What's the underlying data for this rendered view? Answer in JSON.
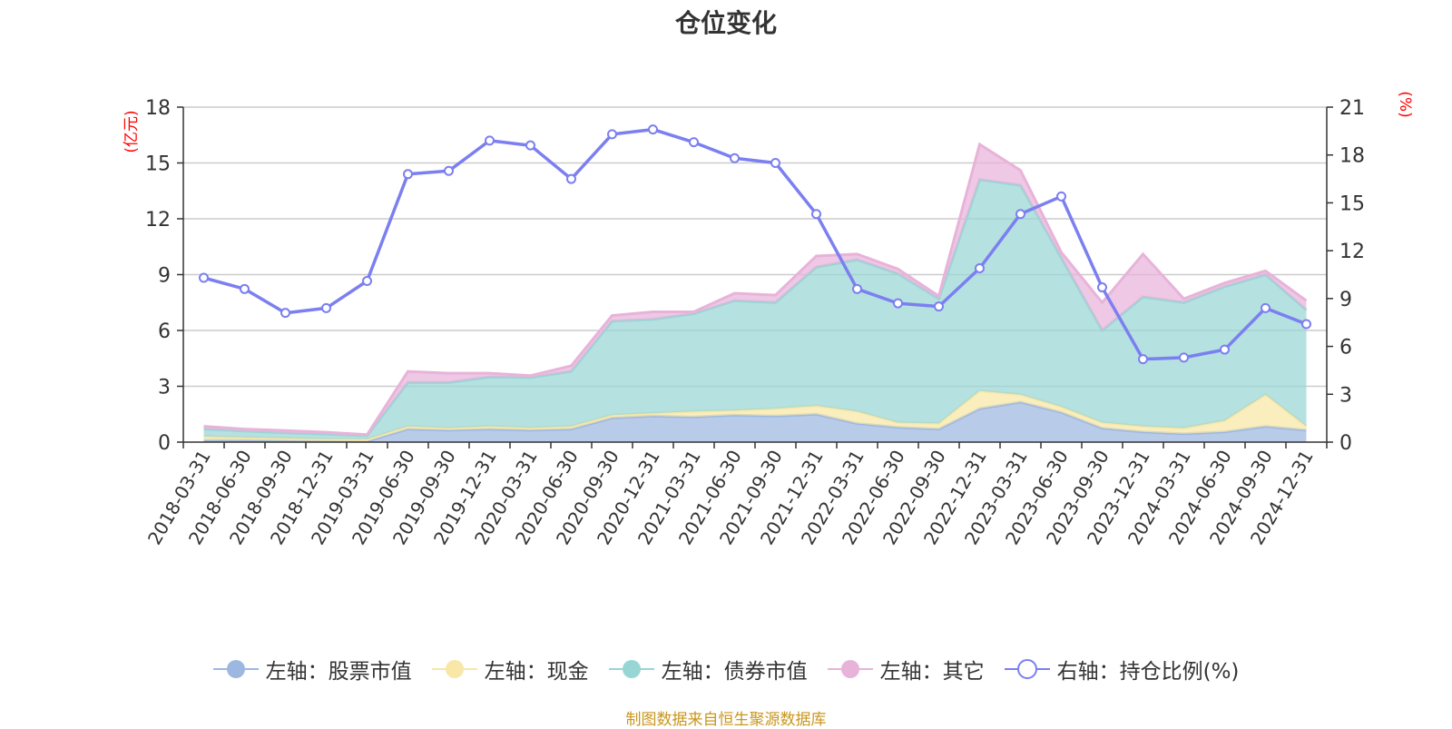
{
  "chart_data": {
    "type": "area",
    "title": "仓位变化",
    "left_axis_unit": "(亿元)",
    "right_axis_unit": "(%)",
    "left_ylim": [
      0,
      18
    ],
    "left_ticks": [
      "0",
      "3",
      "6",
      "9",
      "12",
      "15",
      "18"
    ],
    "right_ylim": [
      0,
      21
    ],
    "right_ticks": [
      "0",
      "3",
      "6",
      "9",
      "12",
      "15",
      "18",
      "21"
    ],
    "grid": true,
    "legend_position": "bottom",
    "categories": [
      "2018-03-31",
      "2018-06-30",
      "2018-09-30",
      "2018-12-31",
      "2019-03-31",
      "2019-06-30",
      "2019-09-30",
      "2019-12-31",
      "2020-03-31",
      "2020-06-30",
      "2020-09-30",
      "2020-12-31",
      "2021-03-31",
      "2021-06-30",
      "2021-09-30",
      "2021-12-31",
      "2022-03-31",
      "2022-06-30",
      "2022-09-30",
      "2022-12-31",
      "2023-03-31",
      "2023-06-30",
      "2023-09-30",
      "2023-12-31",
      "2024-03-31",
      "2024-06-30",
      "2024-09-30",
      "2024-12-31"
    ],
    "series": [
      {
        "name": "左轴：股票市值",
        "axis": "left",
        "kind": "stacked-area",
        "color": "#9db8e0",
        "values": [
          0.1,
          0.1,
          0.08,
          0.06,
          0.05,
          0.7,
          0.65,
          0.7,
          0.65,
          0.7,
          1.3,
          1.4,
          1.35,
          1.45,
          1.4,
          1.5,
          1.0,
          0.8,
          0.7,
          1.8,
          2.15,
          1.6,
          0.75,
          0.55,
          0.45,
          0.55,
          0.85,
          0.65
        ]
      },
      {
        "name": "左轴：现金",
        "axis": "left",
        "kind": "stacked-area",
        "color": "#f8e7a6",
        "values": [
          0.2,
          0.15,
          0.12,
          0.1,
          0.1,
          0.15,
          0.1,
          0.15,
          0.12,
          0.15,
          0.15,
          0.15,
          0.3,
          0.25,
          0.4,
          0.45,
          0.65,
          0.25,
          0.3,
          0.95,
          0.4,
          0.3,
          0.3,
          0.3,
          0.3,
          0.6,
          1.7,
          0.2
        ]
      },
      {
        "name": "左轴：债券市值",
        "axis": "left",
        "kind": "stacked-area",
        "color": "#98d6d6",
        "values": [
          0.4,
          0.35,
          0.3,
          0.27,
          0.2,
          2.35,
          2.45,
          2.65,
          2.7,
          2.95,
          5.05,
          5.05,
          5.25,
          5.9,
          5.7,
          7.45,
          8.15,
          8.0,
          6.7,
          11.35,
          11.25,
          8.0,
          4.95,
          6.95,
          6.75,
          7.2,
          6.45,
          6.25
        ]
      },
      {
        "name": "左轴：其它",
        "axis": "left",
        "kind": "stacked-area",
        "color": "#e8b3d9",
        "values": [
          0.15,
          0.1,
          0.12,
          0.1,
          0.05,
          0.6,
          0.5,
          0.2,
          0.1,
          0.3,
          0.3,
          0.4,
          0.1,
          0.4,
          0.4,
          0.6,
          0.3,
          0.25,
          0.15,
          1.9,
          0.8,
          0.3,
          1.5,
          2.3,
          0.2,
          0.2,
          0.2,
          0.5
        ]
      },
      {
        "name": "右轴：持仓比例(%)",
        "axis": "right",
        "kind": "line",
        "color": "#7b7ff0",
        "values": [
          10.3,
          9.6,
          8.1,
          8.4,
          10.1,
          16.8,
          17.0,
          18.9,
          18.6,
          16.5,
          19.3,
          19.6,
          18.8,
          17.8,
          17.5,
          14.3,
          9.6,
          8.7,
          8.5,
          10.9,
          14.3,
          15.4,
          9.7,
          5.2,
          5.3,
          5.8,
          8.4,
          7.4
        ]
      }
    ]
  },
  "source_note": "制图数据来自恒生聚源数据库"
}
